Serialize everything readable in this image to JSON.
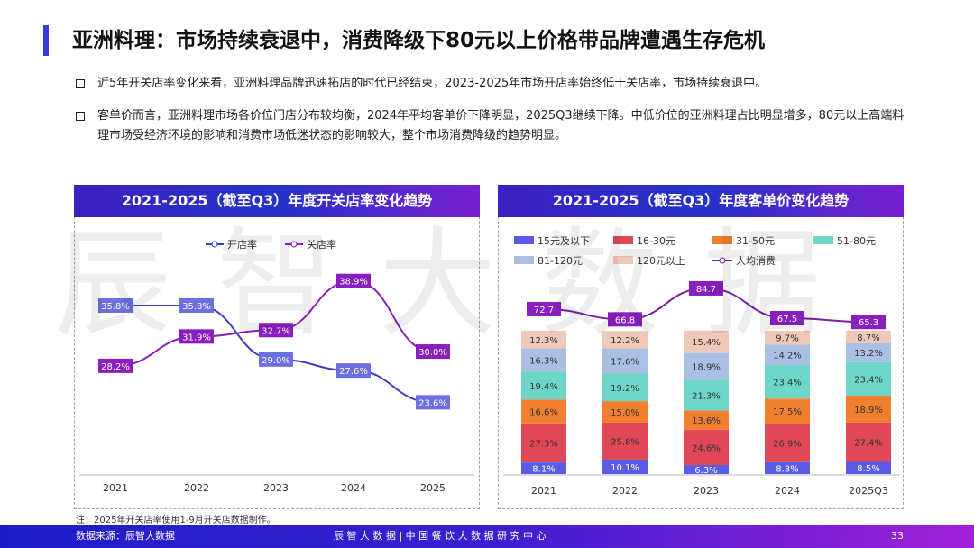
{
  "title": "亚洲料理：市场持续衰退中，消费降级下80元以上价格带品牌遭遇生存危机",
  "bullets": [
    "近5年开关店率变化来看，亚洲料理品牌迅速拓店的时代已经结束，2023-2025年市场开店率始终低于关店率，市场持续衰退中。",
    "客单价而言，亚洲料理市场各价位门店分布较均衡，2024年平均客单价下降明显，2025Q3继续下降。中低价位的亚洲料理占比明显增多，80元以上高端料理市场受经济环境的影响和消费市场低迷状态的影响较大，整个市场消费降级的趋势明显。"
  ],
  "watermark": "辰智大数据",
  "note": "注：2025年开关店率使用1-9月开关店数据制作。",
  "footer": {
    "source": "数据来源：辰智大数据",
    "center": "辰 智 大 数 据 | 中 国 餐 饮 大 数 据 研 究 中 心",
    "page": "33"
  },
  "chart_data": [
    {
      "type": "line",
      "title": "2021-2025（截至Q3）年度开关店率变化趋势",
      "categories": [
        "2021",
        "2022",
        "2023",
        "2024",
        "2025"
      ],
      "series": [
        {
          "name": "开店率",
          "values": [
            35.8,
            35.8,
            29.0,
            27.6,
            23.6
          ],
          "color": "#3d3dbf",
          "label_bg": "#6b6fe0"
        },
        {
          "name": "关店率",
          "values": [
            28.2,
            31.9,
            32.7,
            38.9,
            30.0
          ],
          "color": "#8a1fc0",
          "label_bg": "#8a1fc0"
        }
      ],
      "unit": "%",
      "legend": "top"
    },
    {
      "type": "bar",
      "stacked": true,
      "title": "2021-2025（截至Q3）年度客单价变化趋势",
      "categories": [
        "2021",
        "2022",
        "2023",
        "2024",
        "2025Q3"
      ],
      "series": [
        {
          "name": "15元及以下",
          "values": [
            8.1,
            10.1,
            6.3,
            8.3,
            8.5
          ],
          "color": "#5a5ce8"
        },
        {
          "name": "16-30元",
          "values": [
            27.3,
            25.8,
            24.6,
            26.9,
            27.4
          ],
          "color": "#e04857"
        },
        {
          "name": "31-50元",
          "values": [
            16.6,
            15.0,
            13.6,
            17.5,
            18.9
          ],
          "color": "#f08030"
        },
        {
          "name": "51-80元",
          "values": [
            19.4,
            19.2,
            21.3,
            23.4,
            23.4
          ],
          "color": "#6dd6c8"
        },
        {
          "name": "81-120元",
          "values": [
            16.3,
            17.6,
            18.9,
            14.2,
            13.2
          ],
          "color": "#a9bfe3"
        },
        {
          "name": "120元以上",
          "values": [
            12.3,
            12.2,
            15.4,
            9.7,
            8.7
          ],
          "color": "#f0c8b8"
        }
      ],
      "line": {
        "name": "人均消费",
        "values": [
          72.7,
          66.8,
          84.7,
          67.5,
          65.3
        ],
        "color": "#7a1fa8"
      },
      "unit": "%",
      "legend": "top"
    }
  ]
}
